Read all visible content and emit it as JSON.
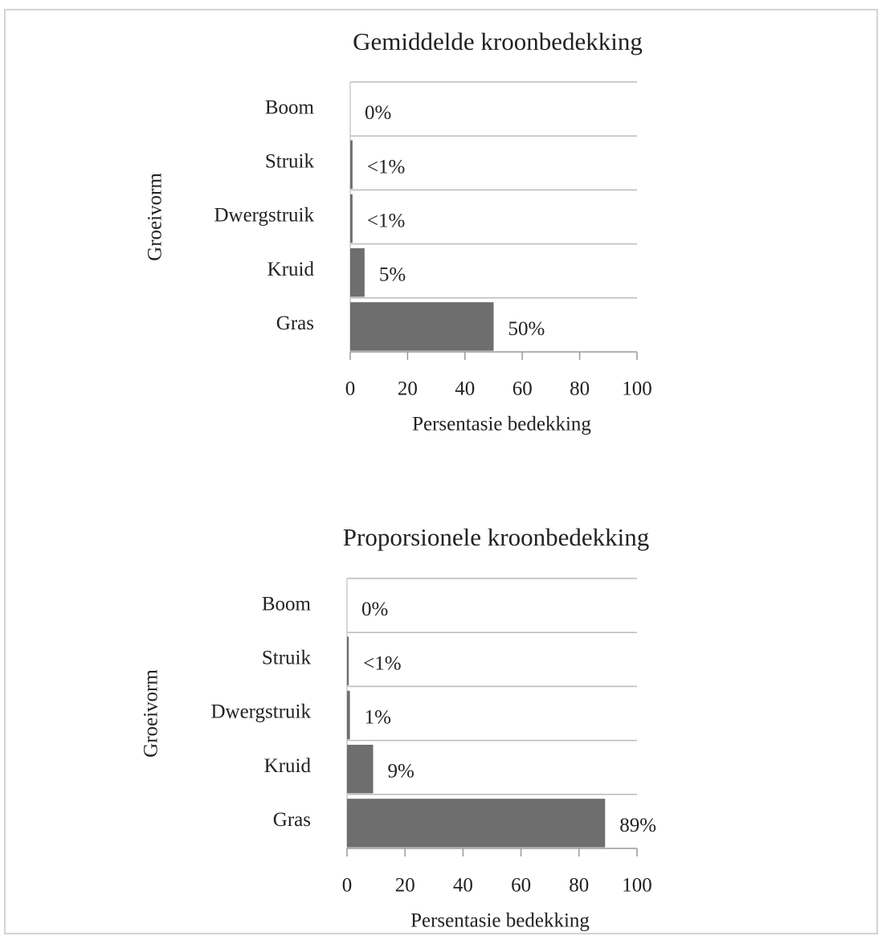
{
  "chart_data": [
    {
      "type": "bar",
      "orientation": "horizontal",
      "title": "Gemiddelde kroonbedekking",
      "x_label": "Persentasie bedekking",
      "y_label": "Groeivorm",
      "categories": [
        "Boom",
        "Struik",
        "Dwergstruik",
        "Kruid",
        "Gras"
      ],
      "values": [
        0,
        0.8,
        0.8,
        5,
        50
      ],
      "value_labels": [
        "0%",
        "<1%",
        "<1%",
        "5%",
        "50%"
      ],
      "color": "#6e6e6e",
      "xlim": [
        0,
        100
      ],
      "xticks": [
        0,
        20,
        40,
        60,
        80,
        100
      ]
    },
    {
      "type": "bar",
      "orientation": "horizontal",
      "title": "Proporsionele kroonbedekking",
      "x_label": "Persentasie bedekking",
      "y_label": "Groeivorm",
      "categories": [
        "Boom",
        "Struik",
        "Dwergstruik",
        "Kruid",
        "Gras"
      ],
      "values": [
        0,
        0.6,
        1,
        9,
        89
      ],
      "value_labels": [
        "0%",
        "<1%",
        "1%",
        "9%",
        "89%"
      ],
      "color": "#6e6e6e",
      "xlim": [
        0,
        100
      ],
      "xticks": [
        0,
        20,
        40,
        60,
        80,
        100
      ]
    }
  ]
}
